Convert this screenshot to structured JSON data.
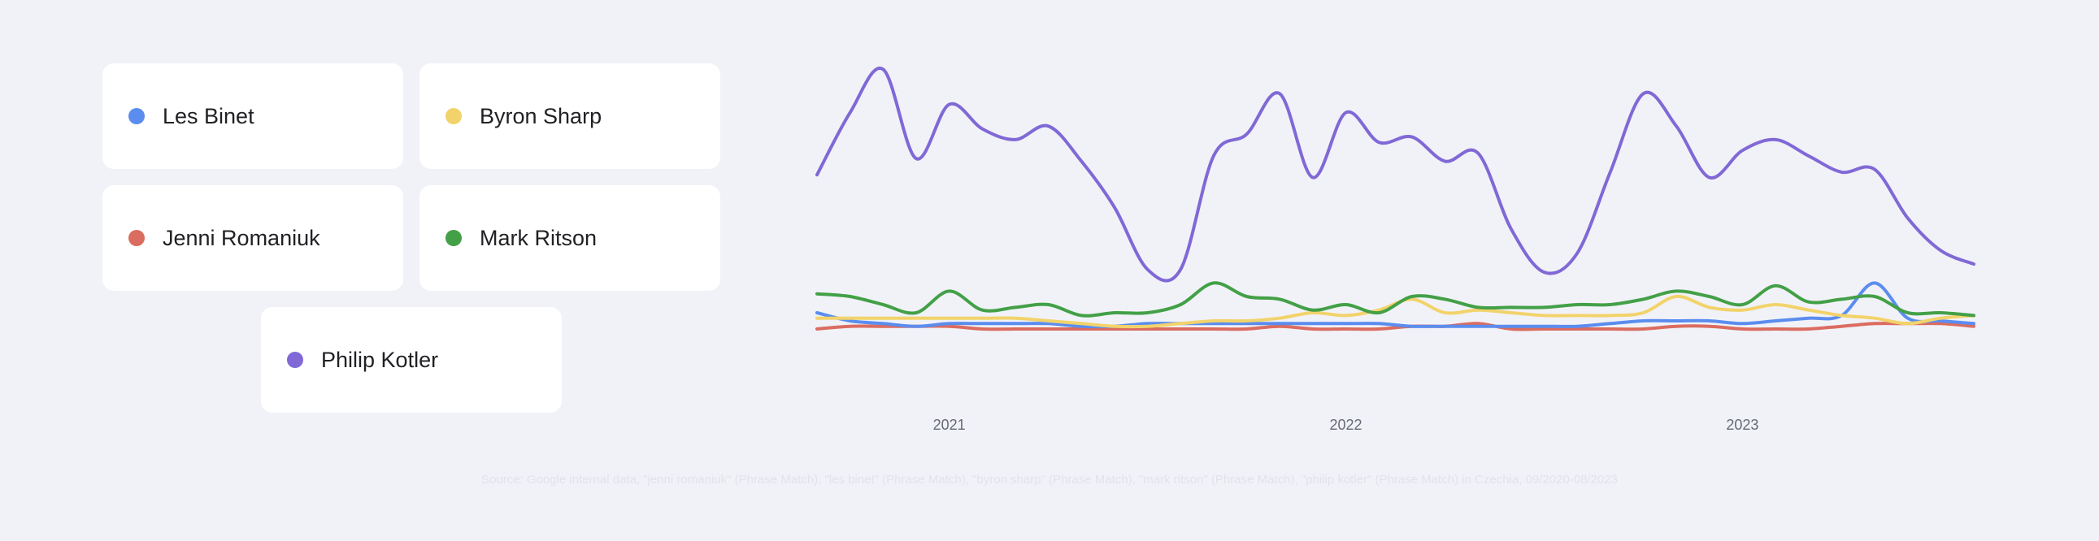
{
  "legend": [
    {
      "label": "Les Binet",
      "color": "#5b8def"
    },
    {
      "label": "Byron Sharp",
      "color": "#f2d36b"
    },
    {
      "label": "Jenni Romaniuk",
      "color": "#db6c60"
    },
    {
      "label": "Mark Ritson",
      "color": "#43a047"
    },
    {
      "label": "Philip Kotler",
      "color": "#8069d6"
    }
  ],
  "source": "Source: Google internal data, \"jenni romaniuk\" (Phrase Match), \"les binet\" (Phrase Match), \"byron sharp\" (Phrase Match), \"mark ritson\" (Phrase Match), \"philip kotler\" (Phrase Match) in Czechia, 09/2020-08/2023",
  "chart_data": {
    "type": "line",
    "title": "",
    "xlabel": "",
    "ylabel": "",
    "x": [
      "2020-09",
      "2020-10",
      "2020-11",
      "2020-12",
      "2021-01",
      "2021-02",
      "2021-03",
      "2021-04",
      "2021-05",
      "2021-06",
      "2021-07",
      "2021-08",
      "2021-09",
      "2021-10",
      "2021-11",
      "2021-12",
      "2022-01",
      "2022-02",
      "2022-03",
      "2022-04",
      "2022-05",
      "2022-06",
      "2022-07",
      "2022-08",
      "2022-09",
      "2022-10",
      "2022-11",
      "2022-12",
      "2023-01",
      "2023-02",
      "2023-03",
      "2023-04",
      "2023-05",
      "2023-06",
      "2023-07",
      "2023-08"
    ],
    "xticks": [
      "2021",
      "2022",
      "2023"
    ],
    "xlim": [
      "2020-09",
      "2023-08"
    ],
    "ylim": [
      0,
      100
    ],
    "grid": false,
    "legend_position": "left",
    "series": [
      {
        "name": "Les Binet",
        "color": "#5b8def",
        "values": [
          6,
          3,
          2,
          1,
          2,
          2,
          2,
          2,
          1,
          1,
          2,
          2,
          2,
          2,
          2,
          2,
          2,
          2,
          1,
          1,
          1,
          1,
          1,
          1,
          2,
          3,
          3,
          3,
          2,
          3,
          4,
          5,
          17,
          4,
          3,
          2
        ]
      },
      {
        "name": "Byron Sharp",
        "color": "#f2d36b",
        "values": [
          4,
          4,
          4,
          4,
          4,
          4,
          4,
          3,
          2,
          1,
          1,
          2,
          3,
          3,
          4,
          6,
          5,
          7,
          11,
          6,
          7,
          6,
          5,
          5,
          5,
          6,
          12,
          8,
          7,
          9,
          7,
          5,
          4,
          2,
          4,
          5
        ]
      },
      {
        "name": "Jenni Romaniuk",
        "color": "#db6c60",
        "values": [
          0,
          1,
          1,
          1,
          1,
          0,
          0,
          0,
          0,
          0,
          0,
          0,
          0,
          0,
          1,
          0,
          0,
          0,
          1,
          1,
          2,
          0,
          0,
          0,
          0,
          0,
          1,
          1,
          0,
          0,
          0,
          1,
          2,
          2,
          2,
          1
        ]
      },
      {
        "name": "Mark Ritson",
        "color": "#43a047",
        "values": [
          13,
          12,
          9,
          6,
          14,
          7,
          8,
          9,
          5,
          6,
          6,
          9,
          17,
          12,
          11,
          7,
          9,
          6,
          12,
          11,
          8,
          8,
          8,
          9,
          9,
          11,
          14,
          12,
          9,
          16,
          10,
          11,
          12,
          6,
          6,
          5
        ]
      },
      {
        "name": "Philip Kotler",
        "color": "#8069d6",
        "values": [
          57,
          80,
          96,
          63,
          83,
          74,
          70,
          75,
          62,
          45,
          22,
          22,
          64,
          72,
          87,
          56,
          80,
          69,
          71,
          62,
          65,
          37,
          21,
          28,
          58,
          87,
          75,
          56,
          66,
          70,
          64,
          58,
          59,
          41,
          29,
          24
        ]
      }
    ]
  }
}
